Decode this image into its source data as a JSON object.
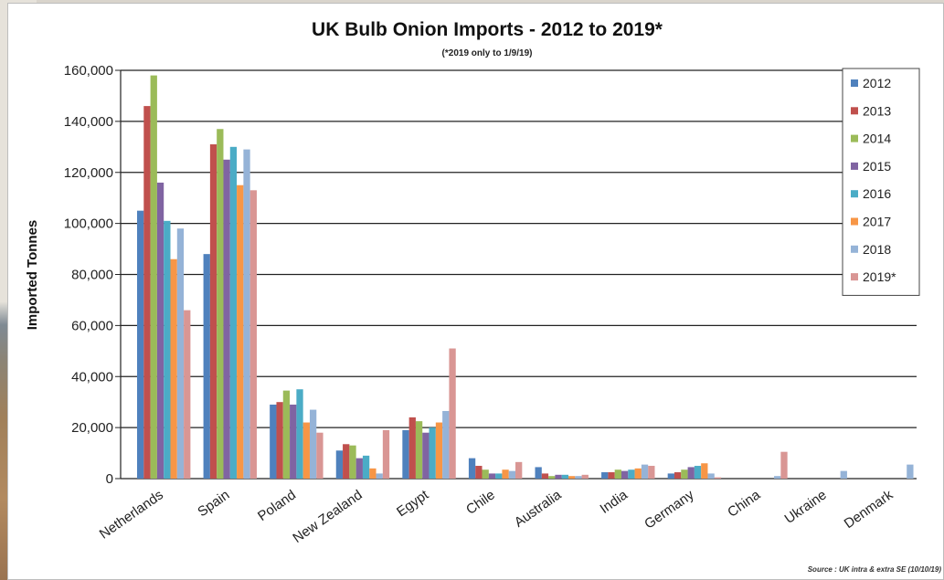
{
  "chart_data": {
    "type": "bar",
    "title": "UK Bulb Onion Imports - 2012 to 2019*",
    "subtitle": "(*2019 only to 1/9/19)",
    "ylabel": "Imported Tonnes",
    "xlabel": "",
    "ylim": [
      0,
      160000
    ],
    "yticks": [
      "0",
      "20,000",
      "40,000",
      "60,000",
      "80,000",
      "100,000",
      "120,000",
      "140,000",
      "160,000"
    ],
    "grid": true,
    "legend_position": "right",
    "source": "Source : UK intra & extra SE (10/10/19)",
    "categories": [
      "Netherlands",
      "Spain",
      "Poland",
      "New Zealand",
      "Egypt",
      "Chile",
      "Australia",
      "India",
      "Germany",
      "China",
      "Ukraine",
      "Denmark"
    ],
    "series": [
      {
        "name": "2012",
        "color": "#4f81bd",
        "values": [
          105000,
          88000,
          29000,
          11000,
          19000,
          8000,
          4500,
          2500,
          2000,
          0,
          0,
          0
        ]
      },
      {
        "name": "2013",
        "color": "#c0504d",
        "values": [
          146000,
          131000,
          30000,
          13500,
          24000,
          5000,
          2000,
          2500,
          2500,
          0,
          0,
          0
        ]
      },
      {
        "name": "2014",
        "color": "#9bbb59",
        "values": [
          158000,
          137000,
          34500,
          13000,
          22500,
          3500,
          1000,
          3500,
          3500,
          0,
          0,
          0
        ]
      },
      {
        "name": "2015",
        "color": "#8064a2",
        "values": [
          116000,
          125000,
          29000,
          8000,
          18000,
          2000,
          1500,
          3000,
          4500,
          0,
          0,
          0
        ]
      },
      {
        "name": "2016",
        "color": "#4bacc6",
        "values": [
          101000,
          130000,
          35000,
          9000,
          20000,
          2000,
          1500,
          3500,
          5000,
          0,
          0,
          0
        ]
      },
      {
        "name": "2017",
        "color": "#f79646",
        "values": [
          86000,
          115000,
          22000,
          4000,
          22000,
          3500,
          1000,
          4000,
          6000,
          0,
          0,
          0
        ]
      },
      {
        "name": "2018",
        "color": "#95b3d7",
        "values": [
          98000,
          129000,
          27000,
          2000,
          26500,
          3000,
          1000,
          5500,
          2000,
          1000,
          3000,
          5500
        ]
      },
      {
        "name": "2019*",
        "color": "#d99694",
        "values": [
          66000,
          113000,
          18000,
          19000,
          51000,
          6500,
          1500,
          5000,
          500,
          10500,
          0,
          0
        ]
      }
    ]
  }
}
